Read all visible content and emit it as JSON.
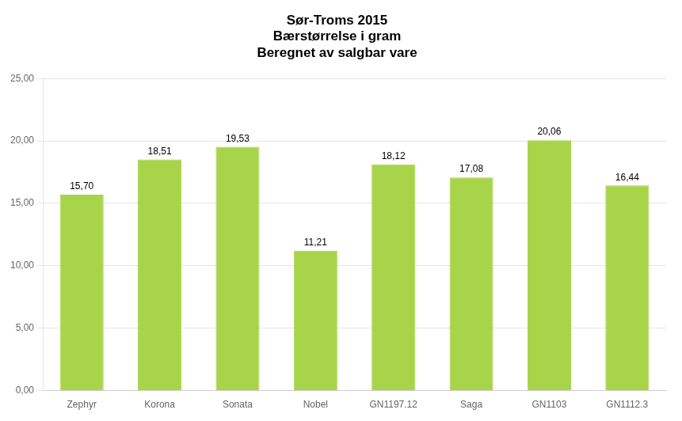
{
  "chart_data": {
    "type": "bar",
    "title": [
      "Sør-Troms 2015",
      "Bærstørrelse i gram",
      "Beregnet av salgbar vare"
    ],
    "categories": [
      "Zephyr",
      "Korona",
      "Sonata",
      "Nobel",
      "GN1197.12",
      "Saga",
      "GN1103",
      "GN1112.3"
    ],
    "values": [
      15.7,
      18.51,
      19.53,
      11.21,
      18.12,
      17.08,
      20.06,
      16.44
    ],
    "value_labels": [
      "15,70",
      "18,51",
      "19,53",
      "11,21",
      "18,12",
      "17,08",
      "20,06",
      "16,44"
    ],
    "data_labels": true,
    "color": "#A8D44A",
    "ylim": [
      0,
      25
    ],
    "yticks": [
      {
        "value": 0,
        "label": "0,00"
      },
      {
        "value": 5,
        "label": "5,00"
      },
      {
        "value": 10,
        "label": "10,00"
      },
      {
        "value": 15,
        "label": "15,00"
      },
      {
        "value": 20,
        "label": "20,00"
      },
      {
        "value": 25,
        "label": "25,00"
      }
    ],
    "grid": true
  }
}
